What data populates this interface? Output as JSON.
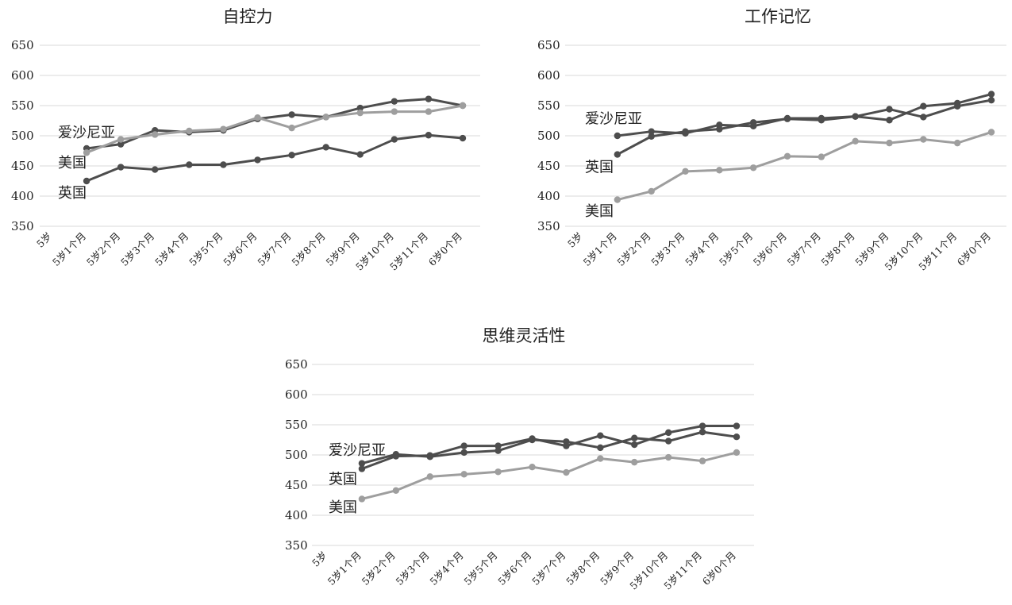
{
  "chart_data": [
    {
      "type": "line",
      "title": "自控力",
      "categories": [
        "5岁",
        "5岁1个月",
        "5岁2个月",
        "5岁3个月",
        "5岁4个月",
        "5岁5个月",
        "5岁6个月",
        "5岁7个月",
        "5岁8个月",
        "5岁9个月",
        "5岁10个月",
        "5岁11个月",
        "6岁0个月"
      ],
      "ylim": [
        350,
        650
      ],
      "yticks": [
        350,
        400,
        450,
        500,
        550,
        600,
        650
      ],
      "grid": true,
      "series": [
        {
          "name": "爱沙尼亚",
          "color": "#4d4d4d",
          "label_value": 505,
          "values": [
            null,
            479,
            486,
            509,
            506,
            509,
            528,
            535,
            531,
            546,
            557,
            561,
            550
          ]
        },
        {
          "name": "美国",
          "color": "#9e9e9e",
          "label_value": 455,
          "values": [
            null,
            472,
            494,
            502,
            508,
            511,
            530,
            513,
            531,
            538,
            540,
            540,
            550
          ]
        },
        {
          "name": "英国",
          "color": "#4d4d4d",
          "label_value": 405,
          "values": [
            null,
            425,
            448,
            444,
            452,
            452,
            460,
            468,
            481,
            469,
            494,
            501,
            496
          ]
        }
      ]
    },
    {
      "type": "line",
      "title": "工作记忆",
      "categories": [
        "5岁",
        "5岁1个月",
        "5岁2个月",
        "5岁3个月",
        "5岁4个月",
        "5岁5个月",
        "5岁6个月",
        "5岁7个月",
        "5岁8个月",
        "5岁9个月",
        "5岁10个月",
        "5岁11个月",
        "6岁0个月"
      ],
      "ylim": [
        350,
        650
      ],
      "yticks": [
        350,
        400,
        450,
        500,
        550,
        600,
        650
      ],
      "grid": true,
      "series": [
        {
          "name": "爱沙尼亚",
          "color": "#4d4d4d",
          "label_value": 528,
          "values": [
            null,
            469,
            499,
            507,
            511,
            522,
            528,
            526,
            532,
            526,
            549,
            554,
            569
          ]
        },
        {
          "name": "英国",
          "color": "#4d4d4d",
          "label_value": 448,
          "values": [
            null,
            500,
            507,
            504,
            518,
            516,
            529,
            529,
            532,
            544,
            531,
            549,
            559
          ]
        },
        {
          "name": "美国",
          "color": "#9e9e9e",
          "label_value": 375,
          "values": [
            null,
            394,
            408,
            441,
            443,
            447,
            466,
            465,
            491,
            488,
            494,
            488,
            506
          ]
        }
      ]
    },
    {
      "type": "line",
      "title": "思维灵活性",
      "categories": [
        "5岁",
        "5岁1个月",
        "5岁2个月",
        "5岁3个月",
        "5岁4个月",
        "5岁5个月",
        "5岁6个月",
        "5岁7个月",
        "5岁8个月",
        "5岁9个月",
        "5岁10个月",
        "5岁11个月",
        "6岁0个月"
      ],
      "ylim": [
        350,
        650
      ],
      "yticks": [
        350,
        400,
        450,
        500,
        550,
        600,
        650
      ],
      "grid": true,
      "series": [
        {
          "name": "爱沙尼亚",
          "color": "#4d4d4d",
          "label_value": 508,
          "values": [
            null,
            486,
            501,
            497,
            504,
            507,
            525,
            522,
            512,
            528,
            523,
            538,
            530
          ]
        },
        {
          "name": "英国",
          "color": "#4d4d4d",
          "label_value": 460,
          "values": [
            null,
            477,
            498,
            499,
            515,
            515,
            527,
            515,
            532,
            517,
            537,
            548,
            548
          ]
        },
        {
          "name": "美国",
          "color": "#9e9e9e",
          "label_value": 413,
          "values": [
            null,
            427,
            441,
            464,
            468,
            472,
            480,
            471,
            494,
            488,
            496,
            490,
            504
          ]
        }
      ]
    }
  ]
}
